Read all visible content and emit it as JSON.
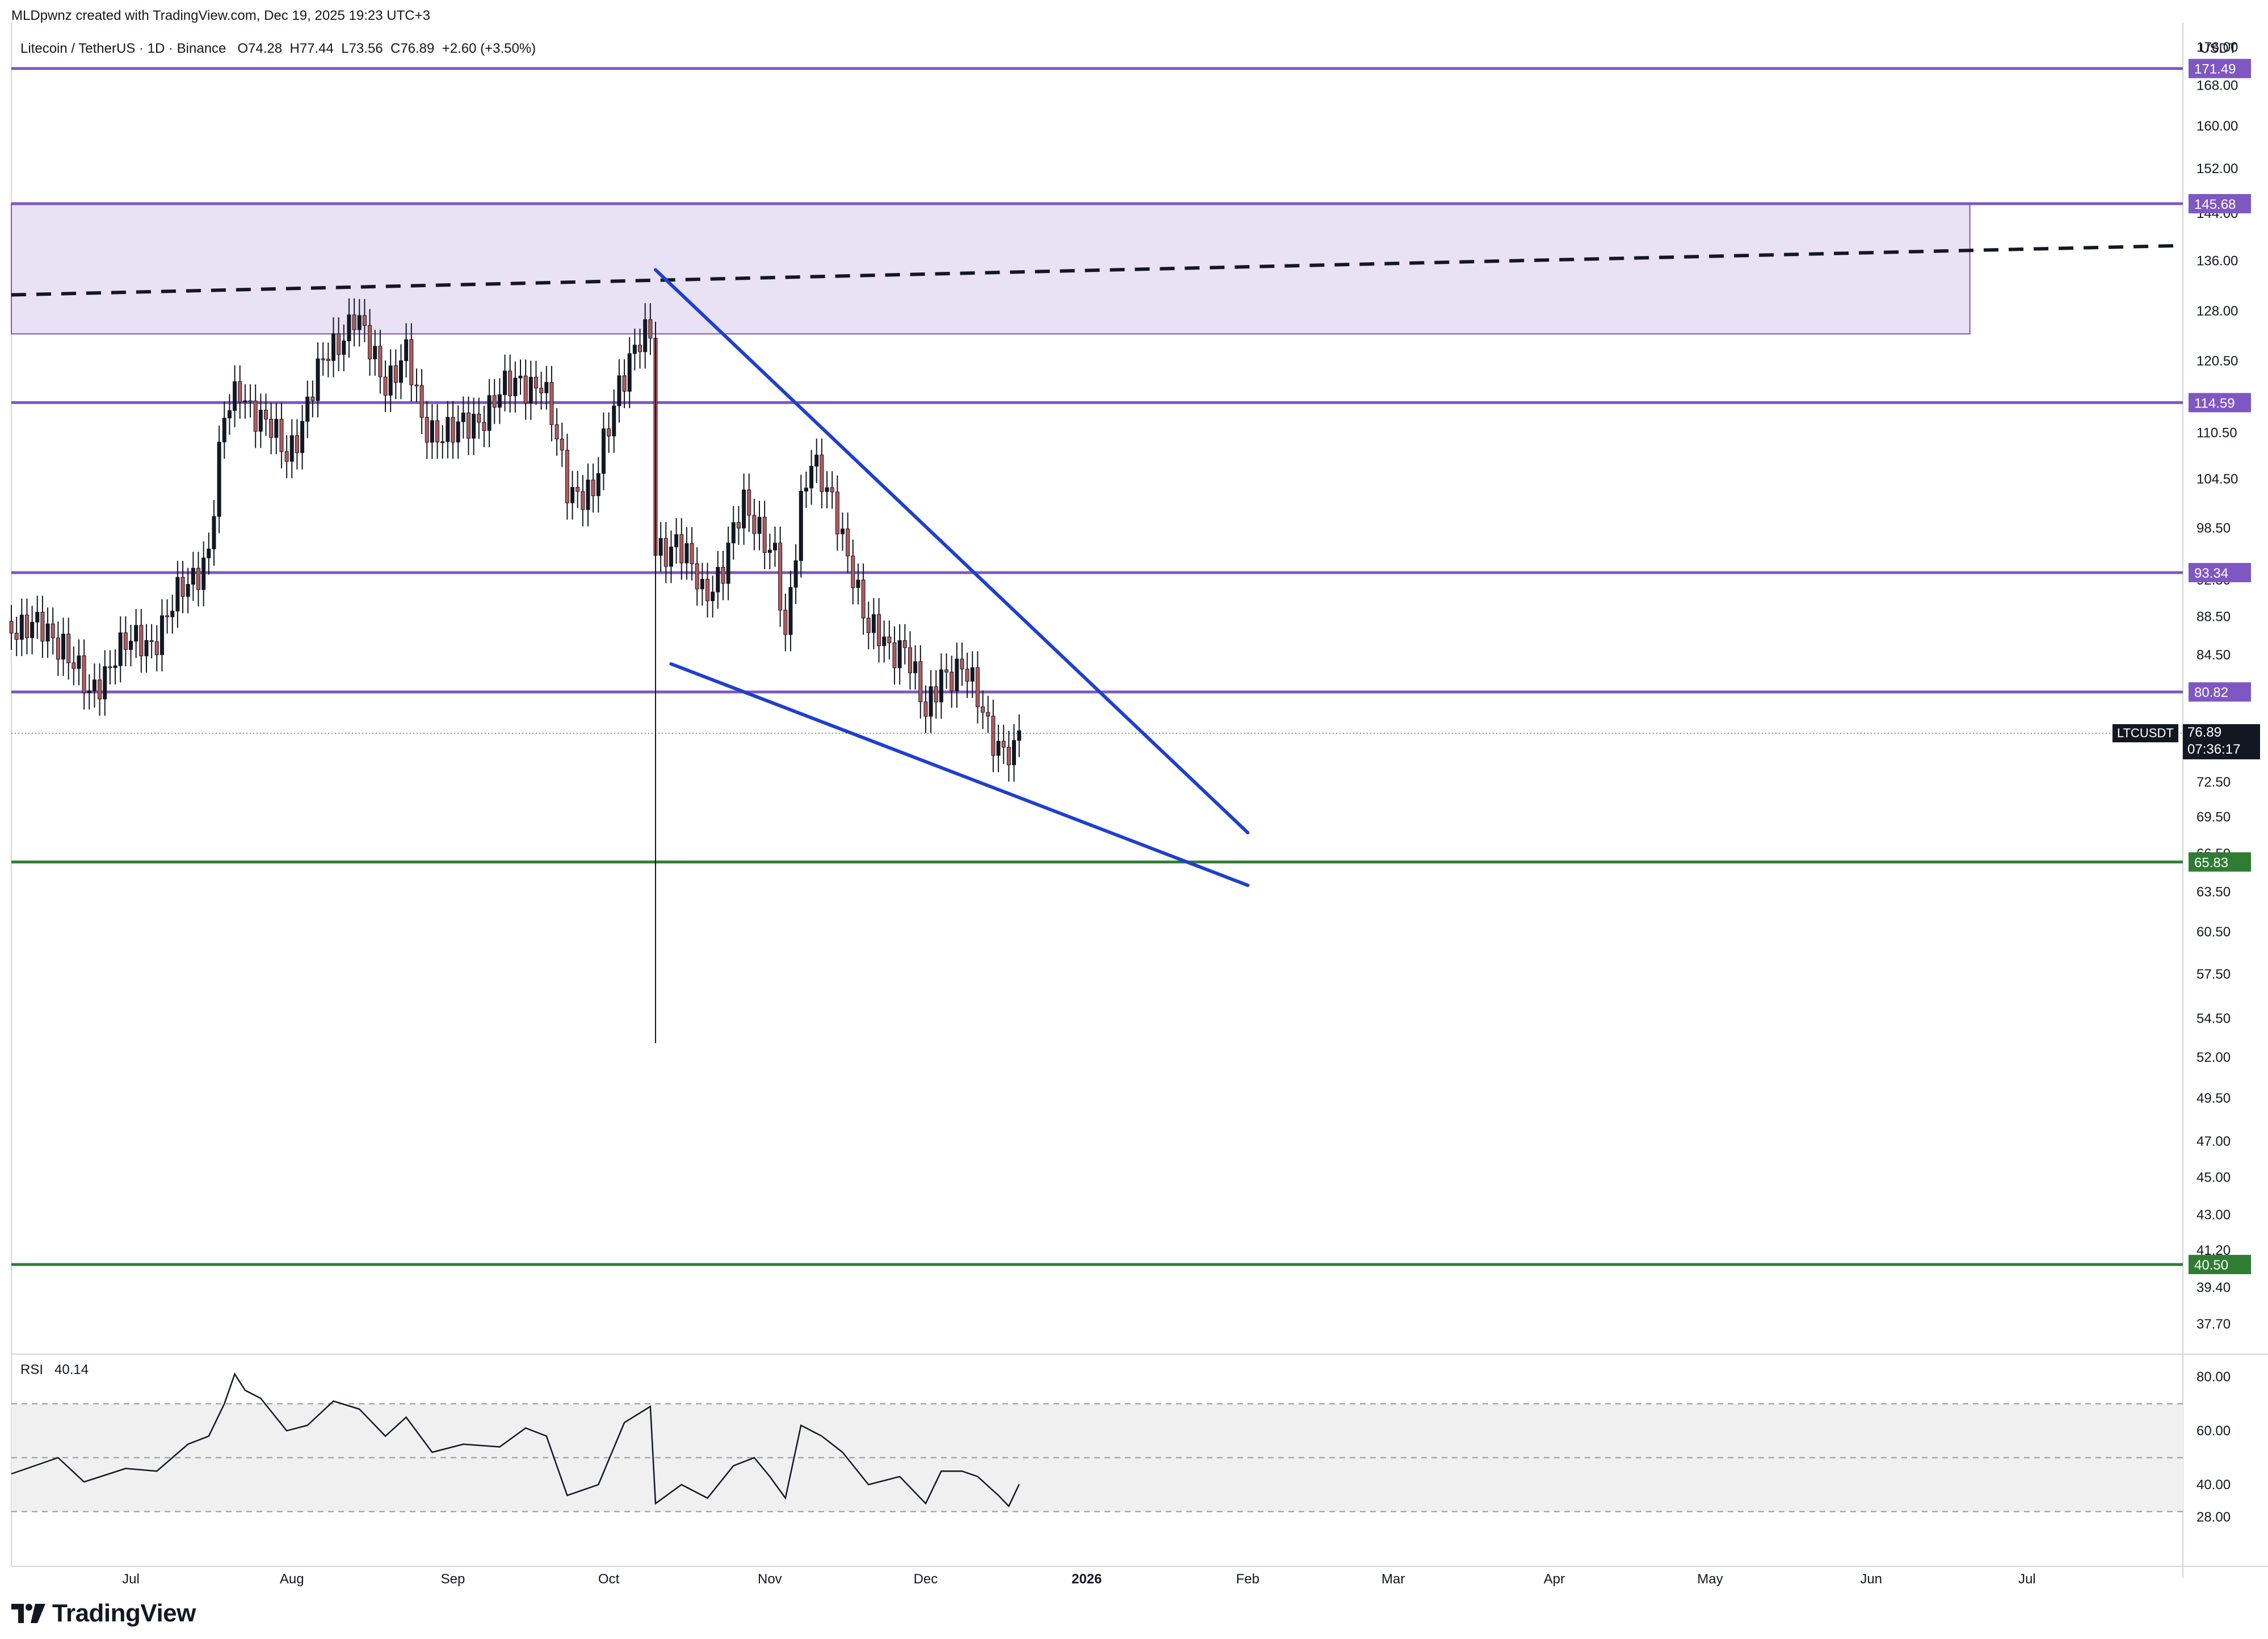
{
  "header": {
    "credit": "MLDpwnz created with TradingView.com, Dec 19, 2025 19:23 UTC+3",
    "symbol": "Litecoin / TetherUS · 1D · Binance",
    "open": "O74.28",
    "high": "H77.44",
    "low": "L73.56",
    "close": "C76.89",
    "change": "+2.60 (+3.50%)"
  },
  "price_axis": {
    "currency": "USDT",
    "ticks": [
      "176.00",
      "168.00",
      "160.00",
      "152.00",
      "144.00",
      "136.00",
      "128.00",
      "120.50",
      "110.50",
      "104.50",
      "98.50",
      "92.50",
      "88.50",
      "84.50",
      "72.50",
      "69.50",
      "66.50",
      "63.50",
      "60.50",
      "57.50",
      "54.50",
      "52.00",
      "49.50",
      "47.00",
      "45.00",
      "43.00",
      "41.20",
      "39.40",
      "37.70"
    ]
  },
  "last_price": {
    "ticker": "LTCUSDT",
    "price": "76.89",
    "countdown": "07:36:17"
  },
  "time_axis": [
    "Jul",
    "Aug",
    "Sep",
    "Oct",
    "Nov",
    "Dec",
    "2026",
    "Feb",
    "Mar",
    "Apr",
    "May",
    "Jun",
    "Jul"
  ],
  "rsi": {
    "label": "RSI",
    "value": "40.14",
    "ticks": [
      "80.00",
      "60.00",
      "40.00",
      "28.00"
    ]
  },
  "logo": {
    "text": "TradingView"
  },
  "colors": {
    "up": "#131722",
    "down": "#b05c5c",
    "purple": "#7e57c2",
    "green": "#2e7d32",
    "zone_fill": "#e9e1f4",
    "trendline": "#1f3fcc",
    "rsi_band": "#f0f0f0"
  },
  "chart_data": [
    {
      "type": "candlestick",
      "title": "Litecoin / TetherUS · 1D · Binance",
      "x_range": [
        "2025-06-08",
        "2026-07-31"
      ],
      "y_scale": "log",
      "ylim": [
        36.5,
        180
      ],
      "levels": [
        {
          "label": "171.49",
          "value": 171.49,
          "color": "purple"
        },
        {
          "label": "145.68",
          "value": 145.68,
          "color": "purple"
        },
        {
          "label": "114.59",
          "value": 114.59,
          "color": "purple"
        },
        {
          "label": "93.34",
          "value": 93.34,
          "color": "purple"
        },
        {
          "label": "80.82",
          "value": 80.82,
          "color": "purple"
        },
        {
          "label": "65.83",
          "value": 65.83,
          "color": "green"
        },
        {
          "label": "40.50",
          "value": 40.5,
          "color": "green"
        }
      ],
      "zone": {
        "x_start": "2025-06-08",
        "x_end": "2026-06-20",
        "y_low": 124.5,
        "y_high": 145.68
      },
      "dashed_trendline": [
        {
          "x": "2025-06-08",
          "y": 130.5
        },
        {
          "x": "2026-07-31",
          "y": 138.5
        }
      ],
      "falling_wedge": {
        "upper": [
          {
            "x": "2025-10-10",
            "y": 134.5
          },
          {
            "x": "2026-02-01",
            "y": 68.2
          }
        ],
        "lower": [
          {
            "x": "2025-10-13",
            "y": 83.6
          },
          {
            "x": "2026-02-01",
            "y": 64.0
          }
        ]
      },
      "close_series": [
        {
          "x": "2025-06-08",
          "y": 88
        },
        {
          "x": "2025-06-18",
          "y": 86
        },
        {
          "x": "2025-06-23",
          "y": 80
        },
        {
          "x": "2025-06-28",
          "y": 85
        },
        {
          "x": "2025-07-05",
          "y": 86
        },
        {
          "x": "2025-07-12",
          "y": 92
        },
        {
          "x": "2025-07-16",
          "y": 96
        },
        {
          "x": "2025-07-19",
          "y": 112
        },
        {
          "x": "2025-07-22",
          "y": 117
        },
        {
          "x": "2025-07-26",
          "y": 112
        },
        {
          "x": "2025-07-31",
          "y": 108
        },
        {
          "x": "2025-08-03",
          "y": 112
        },
        {
          "x": "2025-08-08",
          "y": 122
        },
        {
          "x": "2025-08-13",
          "y": 127
        },
        {
          "x": "2025-08-16",
          "y": 122
        },
        {
          "x": "2025-08-19",
          "y": 118
        },
        {
          "x": "2025-08-23",
          "y": 121
        },
        {
          "x": "2025-08-26",
          "y": 112
        },
        {
          "x": "2025-09-01",
          "y": 110
        },
        {
          "x": "2025-09-08",
          "y": 114
        },
        {
          "x": "2025-09-14",
          "y": 118
        },
        {
          "x": "2025-09-18",
          "y": 117
        },
        {
          "x": "2025-09-23",
          "y": 104
        },
        {
          "x": "2025-09-28",
          "y": 102
        },
        {
          "x": "2025-10-03",
          "y": 118
        },
        {
          "x": "2025-10-06",
          "y": 122
        },
        {
          "x": "2025-10-09",
          "y": 124
        },
        {
          "x": "2025-10-10",
          "y": 96
        },
        {
          "x": "2025-10-14",
          "y": 97
        },
        {
          "x": "2025-10-19",
          "y": 91
        },
        {
          "x": "2025-10-23",
          "y": 94
        },
        {
          "x": "2025-10-27",
          "y": 101
        },
        {
          "x": "2025-10-30",
          "y": 99
        },
        {
          "x": "2025-11-02",
          "y": 95
        },
        {
          "x": "2025-11-04",
          "y": 85
        },
        {
          "x": "2025-11-07",
          "y": 102
        },
        {
          "x": "2025-11-09",
          "y": 108
        },
        {
          "x": "2025-11-11",
          "y": 104
        },
        {
          "x": "2025-11-14",
          "y": 99
        },
        {
          "x": "2025-11-17",
          "y": 94
        },
        {
          "x": "2025-11-20",
          "y": 87
        },
        {
          "x": "2025-11-24",
          "y": 85
        },
        {
          "x": "2025-11-27",
          "y": 86
        },
        {
          "x": "2025-12-01",
          "y": 78
        },
        {
          "x": "2025-12-04",
          "y": 83
        },
        {
          "x": "2025-12-08",
          "y": 83
        },
        {
          "x": "2025-12-11",
          "y": 80
        },
        {
          "x": "2025-12-15",
          "y": 76
        },
        {
          "x": "2025-12-18",
          "y": 74.29
        },
        {
          "x": "2025-12-19",
          "y": 76.89
        }
      ],
      "rsi_series": [
        {
          "x": "2025-06-08",
          "y": 44
        },
        {
          "x": "2025-06-17",
          "y": 50
        },
        {
          "x": "2025-06-22",
          "y": 41
        },
        {
          "x": "2025-06-30",
          "y": 46
        },
        {
          "x": "2025-07-06",
          "y": 45
        },
        {
          "x": "2025-07-12",
          "y": 55
        },
        {
          "x": "2025-07-16",
          "y": 58
        },
        {
          "x": "2025-07-19",
          "y": 70
        },
        {
          "x": "2025-07-21",
          "y": 81
        },
        {
          "x": "2025-07-23",
          "y": 75
        },
        {
          "x": "2025-07-26",
          "y": 72
        },
        {
          "x": "2025-07-31",
          "y": 60
        },
        {
          "x": "2025-08-04",
          "y": 62
        },
        {
          "x": "2025-08-09",
          "y": 71
        },
        {
          "x": "2025-08-14",
          "y": 68
        },
        {
          "x": "2025-08-19",
          "y": 58
        },
        {
          "x": "2025-08-23",
          "y": 65
        },
        {
          "x": "2025-08-28",
          "y": 52
        },
        {
          "x": "2025-09-03",
          "y": 55
        },
        {
          "x": "2025-09-10",
          "y": 54
        },
        {
          "x": "2025-09-15",
          "y": 61
        },
        {
          "x": "2025-09-19",
          "y": 58
        },
        {
          "x": "2025-09-23",
          "y": 36
        },
        {
          "x": "2025-09-29",
          "y": 40
        },
        {
          "x": "2025-10-04",
          "y": 63
        },
        {
          "x": "2025-10-09",
          "y": 69
        },
        {
          "x": "2025-10-10",
          "y": 33
        },
        {
          "x": "2025-10-15",
          "y": 40
        },
        {
          "x": "2025-10-20",
          "y": 35
        },
        {
          "x": "2025-10-25",
          "y": 47
        },
        {
          "x": "2025-10-29",
          "y": 50
        },
        {
          "x": "2025-11-01",
          "y": 43
        },
        {
          "x": "2025-11-04",
          "y": 35
        },
        {
          "x": "2025-11-07",
          "y": 62
        },
        {
          "x": "2025-11-11",
          "y": 58
        },
        {
          "x": "2025-11-15",
          "y": 52
        },
        {
          "x": "2025-11-20",
          "y": 40
        },
        {
          "x": "2025-11-26",
          "y": 43
        },
        {
          "x": "2025-12-01",
          "y": 33
        },
        {
          "x": "2025-12-04",
          "y": 45
        },
        {
          "x": "2025-12-08",
          "y": 45
        },
        {
          "x": "2025-12-11",
          "y": 43
        },
        {
          "x": "2025-12-15",
          "y": 36
        },
        {
          "x": "2025-12-17",
          "y": 32
        },
        {
          "x": "2025-12-19",
          "y": 40.14
        }
      ],
      "rsi_levels": [
        70,
        50,
        30
      ]
    }
  ]
}
